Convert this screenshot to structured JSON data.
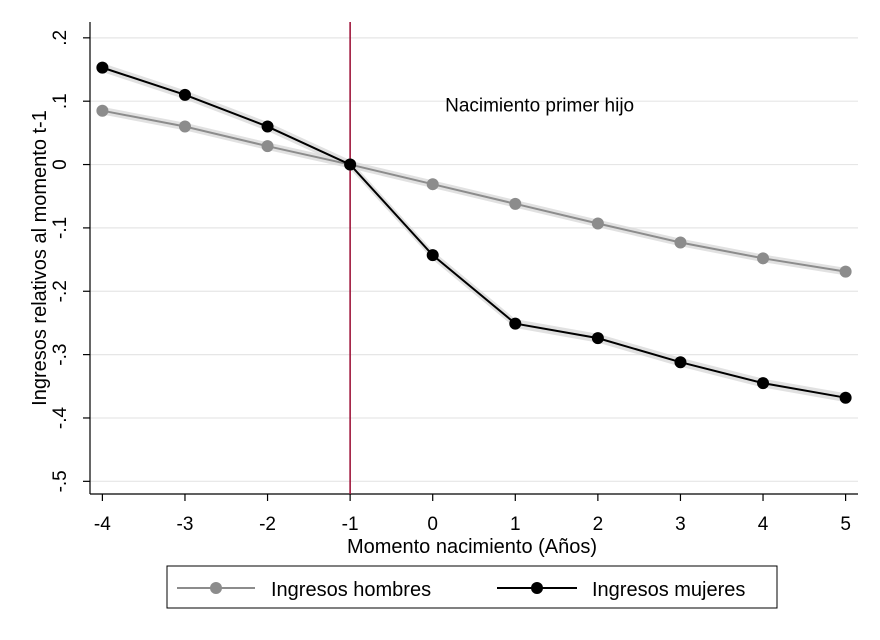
{
  "chart_data": {
    "type": "line",
    "xlabel": "Momento nacimiento (Años)",
    "ylabel": "Ingresos relativos al momento t-1",
    "x": [
      -4,
      -3,
      -2,
      -1,
      0,
      1,
      2,
      3,
      4,
      5
    ],
    "xticks": [
      "-4",
      "-3",
      "-2",
      "-1",
      "0",
      "1",
      "2",
      "3",
      "4",
      "5"
    ],
    "yticks": [
      {
        "value": 0.2,
        "label": ".2"
      },
      {
        "value": 0.1,
        "label": ".1"
      },
      {
        "value": 0.0,
        "label": "0"
      },
      {
        "value": -0.1,
        "label": "-.1"
      },
      {
        "value": -0.2,
        "label": "-.2"
      },
      {
        "value": -0.3,
        "label": "-.3"
      },
      {
        "value": -0.4,
        "label": "-.4"
      },
      {
        "value": -0.5,
        "label": "-.5"
      }
    ],
    "xlim": [
      -4.15,
      5.15
    ],
    "ylim": [
      -0.52,
      0.225
    ],
    "grid": true,
    "vertical_line": {
      "x": -1,
      "color": "#a0173c"
    },
    "annotation": {
      "text": "Nacimiento primer hijo",
      "x": 0.15,
      "y": 0.095
    },
    "series": [
      {
        "name": "Ingresos hombres",
        "color": "#8c8c8c",
        "values": [
          0.085,
          0.06,
          0.029,
          0.0,
          -0.031,
          -0.062,
          -0.093,
          -0.123,
          -0.148,
          -0.169
        ],
        "band": 0.006
      },
      {
        "name": "Ingresos mujeres",
        "color": "#000000",
        "values": [
          0.153,
          0.11,
          0.06,
          0.0,
          -0.143,
          -0.251,
          -0.274,
          -0.312,
          -0.345,
          -0.368
        ],
        "band": 0.007
      }
    ],
    "legend": {
      "position": "bottom"
    }
  }
}
